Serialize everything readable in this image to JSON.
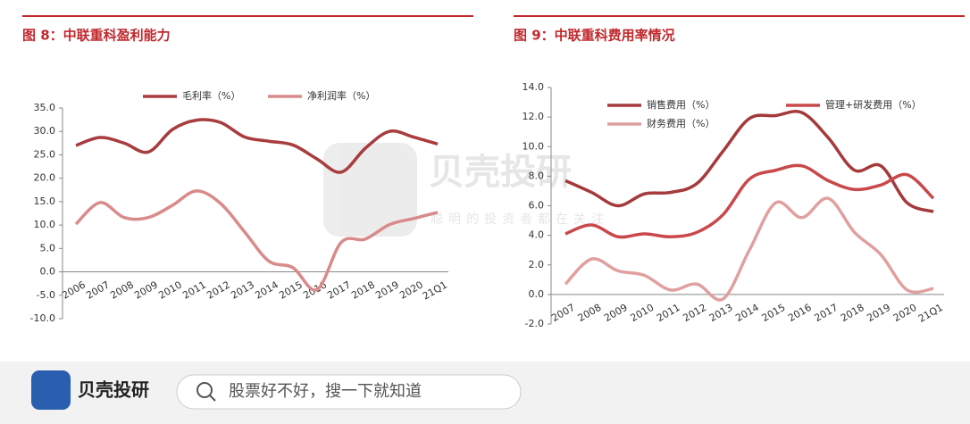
{
  "chart_data": [
    {
      "type": "line",
      "title": "图 8：中联重科盈利能力",
      "categories": [
        "2006",
        "2007",
        "2008",
        "2009",
        "2010",
        "2011",
        "2012",
        "2013",
        "2014",
        "2015",
        "2016",
        "2017",
        "2018",
        "2019",
        "2020",
        "21Q1"
      ],
      "series": [
        {
          "name": "毛利率（%）",
          "color": "#a83c3e",
          "values": [
            27.0,
            28.7,
            27.5,
            25.6,
            30.4,
            32.4,
            31.9,
            28.8,
            27.9,
            27.1,
            24.1,
            21.3,
            26.4,
            30.0,
            28.8,
            27.3
          ]
        },
        {
          "name": "净利润率（%）",
          "color": "#d98a8a",
          "values": [
            10.2,
            14.8,
            11.6,
            11.6,
            14.2,
            17.3,
            14.6,
            8.5,
            2.3,
            0.9,
            -3.8,
            6.3,
            7.0,
            10.1,
            11.4,
            12.7
          ]
        }
      ],
      "ylim": [
        -10,
        35
      ],
      "yticks": [
        {
          "value": -10,
          "label": "-10.0"
        },
        {
          "value": -5,
          "label": "-5.0"
        },
        {
          "value": 0,
          "label": "0.0"
        },
        {
          "value": 5,
          "label": "5.0"
        },
        {
          "value": 10,
          "label": "10.0"
        },
        {
          "value": 15,
          "label": "15.0"
        },
        {
          "value": 20,
          "label": "20.0"
        },
        {
          "value": 25,
          "label": "25.0"
        },
        {
          "value": 30,
          "label": "30.0"
        },
        {
          "value": 35,
          "label": "35.0"
        }
      ],
      "legend": "top"
    },
    {
      "type": "line",
      "title": "图 9：中联重科费用率情况",
      "categories": [
        "2007",
        "2008",
        "2009",
        "2010",
        "2011",
        "2012",
        "2013",
        "2014",
        "2015",
        "2016",
        "2017",
        "2018",
        "2019",
        "2020",
        "21Q1"
      ],
      "series": [
        {
          "name": "销售费用（%）",
          "color": "#a53a3c",
          "values": [
            7.7,
            6.9,
            6.0,
            6.8,
            6.9,
            7.5,
            9.7,
            11.9,
            12.1,
            12.3,
            10.6,
            8.4,
            8.7,
            6.2,
            5.6
          ]
        },
        {
          "name": "管理+研发费用（%）",
          "color": "#c9484a",
          "values": [
            4.1,
            4.7,
            3.9,
            4.1,
            3.9,
            4.2,
            5.4,
            7.8,
            8.4,
            8.7,
            7.7,
            7.1,
            7.4,
            8.1,
            6.5
          ]
        },
        {
          "name": "财务费用（%）",
          "color": "#e0a0a0",
          "values": [
            0.7,
            2.4,
            1.6,
            1.3,
            0.3,
            0.7,
            -0.3,
            3.0,
            6.2,
            5.2,
            6.5,
            4.2,
            2.7,
            0.3,
            0.4
          ]
        }
      ],
      "ylim": [
        -2,
        14
      ],
      "yticks": [
        {
          "value": -2,
          "label": "-2.0"
        },
        {
          "value": 0,
          "label": "0.0"
        },
        {
          "value": 2,
          "label": "2.0"
        },
        {
          "value": 4,
          "label": "4.0"
        },
        {
          "value": 6,
          "label": "6.0"
        },
        {
          "value": 8,
          "label": "8.0"
        },
        {
          "value": 10,
          "label": "10.0"
        },
        {
          "value": 12,
          "label": "12.0"
        },
        {
          "value": 14,
          "label": "14.0"
        }
      ],
      "legend": "top"
    }
  ],
  "watermark": {
    "brand": "贝壳投研",
    "slogan": "聪明的投资者都在关注"
  },
  "footer": {
    "brand": "贝壳投研",
    "search_placeholder": "股票好不好，搜一下就知道"
  }
}
